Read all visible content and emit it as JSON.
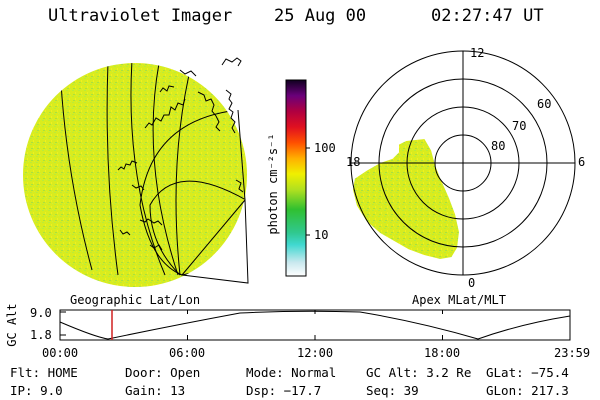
{
  "header": {
    "instrument": "Ultraviolet Imager",
    "date": "25 Aug 00",
    "time": "02:27:47 UT"
  },
  "panels": {
    "left_label": "Geographic Lat/Lon",
    "right_label": "Apex MLat/MLT"
  },
  "colorbar": {
    "unit_label": "photon cm⁻²s⁻¹",
    "ticks": [
      "100",
      "10"
    ]
  },
  "polar": {
    "mlt_labels": {
      "top": "12",
      "left": "18",
      "right": "6",
      "bottom": "0"
    },
    "lat_labels": [
      "60",
      "70",
      "80"
    ]
  },
  "altitude_plot": {
    "ylabel": "GC Alt",
    "yticks": [
      "9.0",
      "1.8"
    ],
    "xticks": [
      "00:00",
      "06:00",
      "12:00",
      "18:00",
      "23:59"
    ]
  },
  "info": {
    "flt": "Flt: HOME",
    "door": "Door: Open",
    "mode": "Mode: Normal",
    "gc_alt": "GC Alt: 3.2 Re",
    "glat": "GLat: −75.4",
    "ip": "IP:  9.0",
    "gain": "Gain: 13",
    "dsp": "Dsp:  −17.7",
    "seq": "Seq: 39",
    "glon": "GLon: 217.3"
  },
  "colors": {
    "emission": "#d9ec1e",
    "speckle_a": "#b9ec3a",
    "speckle_b": "#f0f020",
    "marker": "#d02020"
  }
}
